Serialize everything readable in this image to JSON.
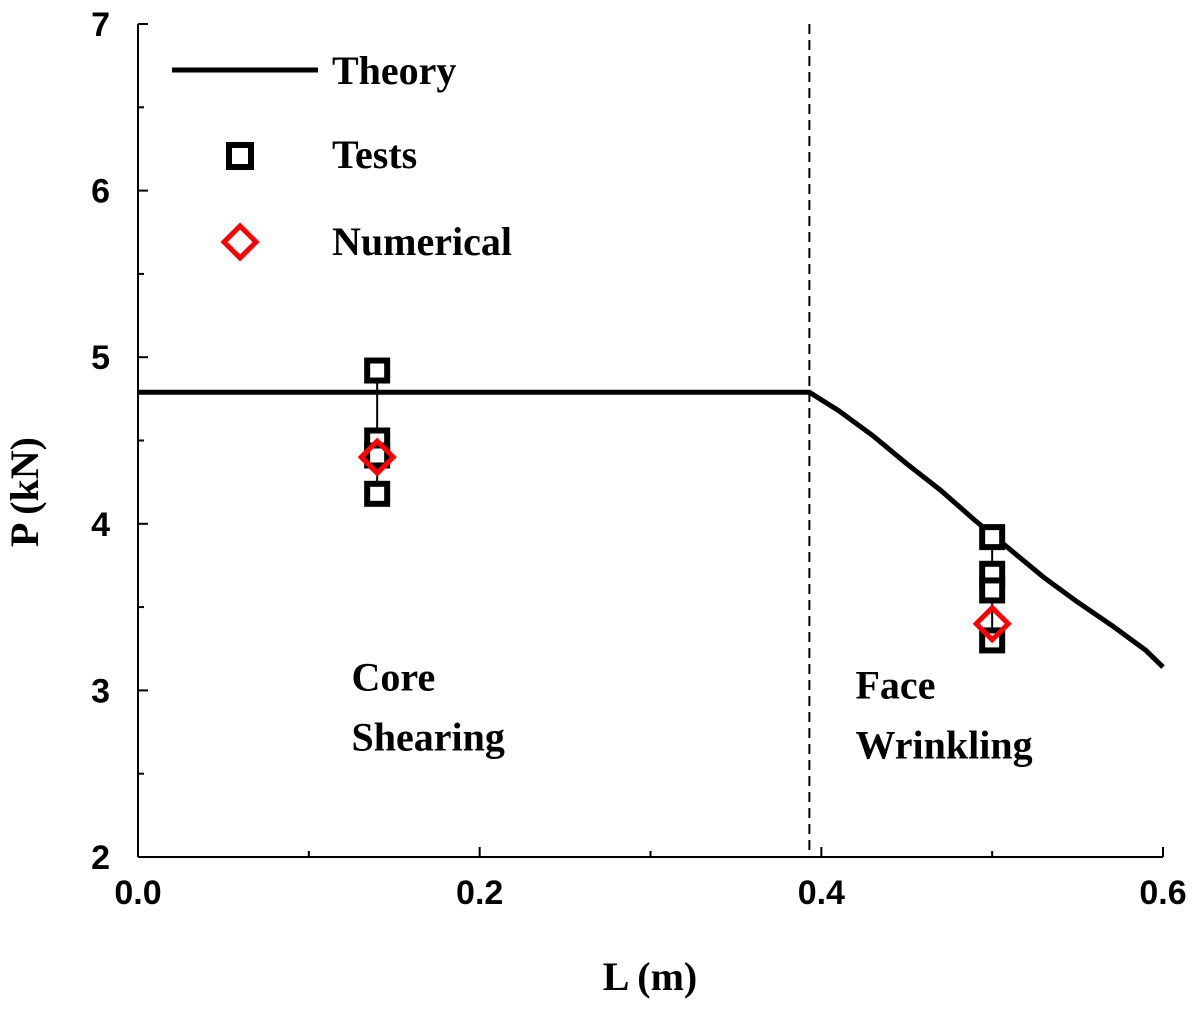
{
  "chart_data": {
    "type": "scatter",
    "xlabel": "L (m)",
    "ylabel": "P (kN)",
    "xlim": [
      0.0,
      0.6
    ],
    "ylim": [
      2,
      7
    ],
    "x_ticks": [
      "0.0",
      "0.2",
      "0.4",
      "0.6"
    ],
    "y_ticks": [
      "2",
      "3",
      "4",
      "5",
      "6",
      "7"
    ],
    "grid": false,
    "legend_position": "top-left",
    "transition_x": 0.393,
    "series": [
      {
        "name": "Theory",
        "kind": "line",
        "color": "#000000",
        "points": [
          [
            0.0,
            4.79
          ],
          [
            0.393,
            4.79
          ],
          [
            0.41,
            4.68
          ],
          [
            0.43,
            4.53
          ],
          [
            0.45,
            4.36
          ],
          [
            0.47,
            4.2
          ],
          [
            0.49,
            4.02
          ],
          [
            0.51,
            3.85
          ],
          [
            0.53,
            3.68
          ],
          [
            0.55,
            3.53
          ],
          [
            0.57,
            3.39
          ],
          [
            0.59,
            3.24
          ],
          [
            0.6,
            3.14
          ]
        ]
      },
      {
        "name": "Tests",
        "kind": "marker",
        "marker": "square",
        "color": "#000000",
        "points": [
          [
            0.14,
            4.92
          ],
          [
            0.14,
            4.5
          ],
          [
            0.14,
            4.41
          ],
          [
            0.14,
            4.18
          ],
          [
            0.5,
            3.92
          ],
          [
            0.5,
            3.7
          ],
          [
            0.5,
            3.6
          ],
          [
            0.5,
            3.3
          ]
        ]
      },
      {
        "name": "Numerical",
        "kind": "marker",
        "marker": "diamond",
        "color": "#ff0000",
        "points": [
          [
            0.14,
            4.4
          ],
          [
            0.5,
            3.4
          ]
        ]
      }
    ],
    "range_bars": [
      {
        "x": 0.14,
        "ymin": 4.18,
        "ymax": 4.92
      },
      {
        "x": 0.5,
        "ymin": 3.3,
        "ymax": 3.92
      }
    ],
    "annotations": [
      {
        "lines": [
          "Core",
          "Shearing"
        ],
        "x": 0.125,
        "y": 3.0
      },
      {
        "lines": [
          "Face",
          "Wrinkling"
        ],
        "x": 0.42,
        "y": 2.95
      }
    ]
  }
}
